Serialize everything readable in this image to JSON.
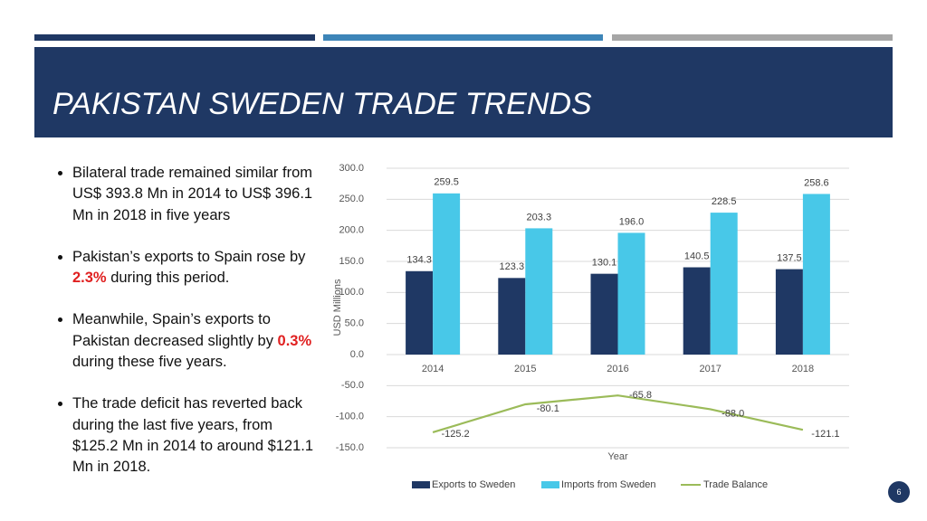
{
  "slide": {
    "title": "PAKISTAN SWEDEN TRADE TRENDS",
    "page_number": "6",
    "bullets": [
      [
        "Bilateral trade remained similar from US$ 393.8 Mn in 2014 to US$ 396.1 Mn in 2018 in five years"
      ],
      [
        "Pakistan’s exports to Spain rose by ",
        {
          "text": "2.3%",
          "color": "#e02020"
        },
        " during this period."
      ],
      [
        "Meanwhile, Spain’s exports to Pakistan decreased slightly by ",
        {
          "text": "0.3%",
          "color": "#e02020"
        },
        " during these five years."
      ],
      [
        "The trade deficit has reverted back during the last five years, from $125.2 Mn in 2014 to around $121.1 Mn in 2018."
      ]
    ]
  },
  "chart_data": {
    "type": "bar",
    "x_label": "Year",
    "y_label": "USD Millions",
    "categories": [
      "2014",
      "2015",
      "2016",
      "2017",
      "2018"
    ],
    "series": [
      {
        "name": "Exports to Sweden",
        "color": "#1f3864",
        "values": [
          134.3,
          123.3,
          130.1,
          140.5,
          137.5
        ]
      },
      {
        "name": "Imports from Sweden",
        "color": "#48c8e8",
        "values": [
          259.5,
          203.3,
          196.0,
          228.5,
          258.6
        ],
        "value_labels": [
          "259.5",
          "203.3",
          "196.0",
          "228.5",
          "258.6"
        ]
      },
      {
        "name": "Trade Balance",
        "type": "line",
        "color": "#9bbb59",
        "values": [
          -125.2,
          -80.1,
          -65.8,
          -88.0,
          -121.1
        ],
        "value_labels": [
          "-125.2",
          "-80.1",
          "-65.8",
          "-88.0",
          "-121.1"
        ]
      }
    ],
    "ylim": [
      -150,
      300
    ],
    "yticks": [
      {
        "value": -150,
        "label": "-150.0"
      },
      {
        "value": -100,
        "label": "-100.0"
      },
      {
        "value": -50,
        "label": "-50.0"
      },
      {
        "value": 0,
        "label": "0.0"
      },
      {
        "value": 50,
        "label": "50.0"
      },
      {
        "value": 100,
        "label": "100.0"
      },
      {
        "value": 150,
        "label": "150.0"
      },
      {
        "value": 200,
        "label": "200.0"
      },
      {
        "value": 250,
        "label": "250.0"
      },
      {
        "value": 300,
        "label": "300.0"
      }
    ],
    "grid": true
  }
}
